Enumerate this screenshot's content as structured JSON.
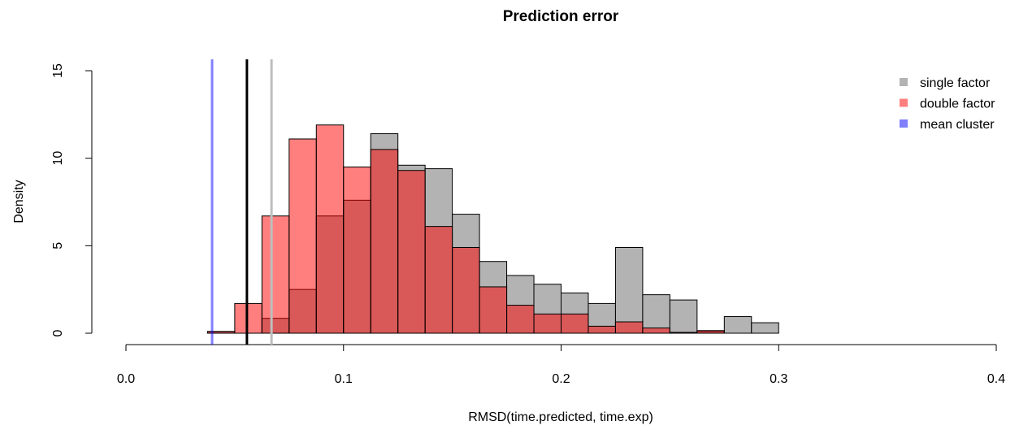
{
  "chart_data": {
    "type": "histogram",
    "title": "Prediction error",
    "xlabel": "RMSD(time.predicted, time.exp)",
    "ylabel": "Density",
    "bins": [
      0,
      0.0125,
      0.025,
      0.0375,
      0.05,
      0.0625,
      0.075,
      0.0875,
      0.1,
      0.1125,
      0.125,
      0.1375,
      0.15,
      0.1625,
      0.175,
      0.1875,
      0.2,
      0.2125,
      0.225,
      0.2375,
      0.25,
      0.2625,
      0.275,
      0.2875,
      0.3,
      0.3125,
      0.325,
      0.3375,
      0.35,
      0.3625,
      0.375,
      0.3875,
      0.4
    ],
    "series": [
      {
        "name": "single factor",
        "color": "#b3b3b3",
        "values": [
          0,
          0,
          0,
          0.1,
          0,
          0.85,
          2.5,
          6.7,
          7.6,
          11.4,
          9.6,
          9.4,
          6.8,
          4.1,
          3.3,
          2.8,
          2.3,
          1.7,
          4.9,
          2.2,
          1.9,
          0.1,
          0.95,
          0.6,
          0,
          0,
          0,
          0,
          0,
          0,
          0,
          0
        ]
      },
      {
        "name": "double factor",
        "color": "rgba(255,0,0,0.5)",
        "values": [
          0,
          0,
          0,
          0.1,
          1.7,
          6.7,
          11.1,
          11.9,
          9.5,
          10.5,
          9.3,
          6.1,
          4.9,
          2.65,
          1.6,
          1.1,
          1.1,
          0.4,
          0.65,
          0.3,
          0.05,
          0.15,
          0,
          0,
          0,
          0,
          0,
          0,
          0,
          0,
          0,
          0
        ]
      },
      {
        "name": "mean cluster",
        "color": "rgba(0,0,255,0.5)",
        "vline": 0.0396
      }
    ],
    "vlines": [
      {
        "value": 0.0556,
        "color": "#000000"
      },
      {
        "value": 0.0669,
        "color": "#bebebe"
      }
    ],
    "xlim": [
      0,
      0.4
    ],
    "xticks": [
      {
        "value": 0,
        "label": "0.0"
      },
      0.1,
      0.2,
      0.3,
      0.4
    ],
    "ylim": [
      0,
      15
    ],
    "yticks": [
      0,
      5,
      10,
      15
    ],
    "legend": "topright"
  }
}
